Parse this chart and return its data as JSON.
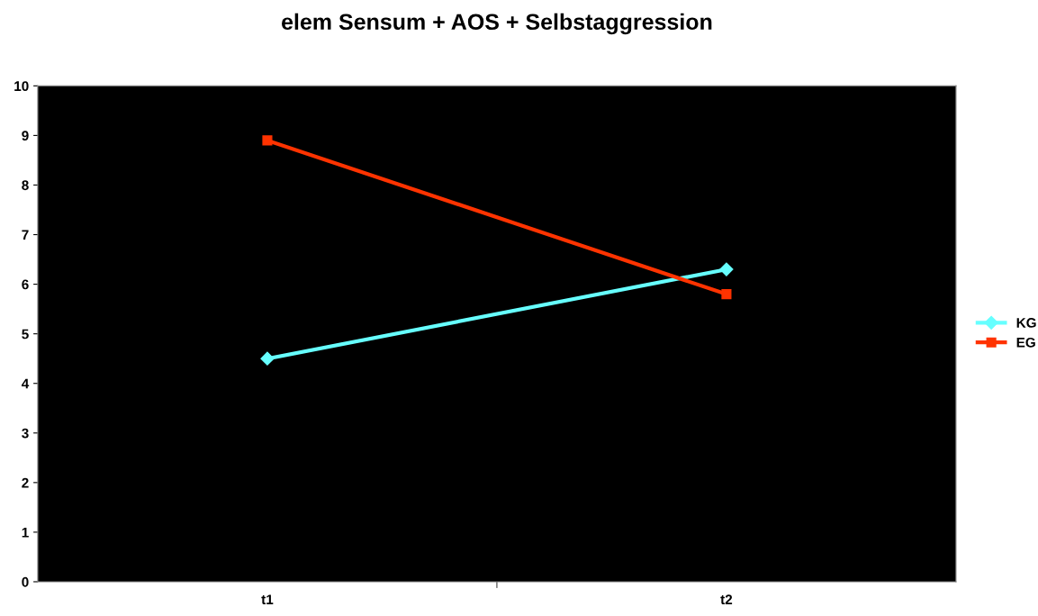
{
  "chart_data": {
    "type": "line",
    "title": "elem Sensum + AOS + Selbstaggression",
    "categories": [
      "t1",
      "t2"
    ],
    "series": [
      {
        "name": "KG",
        "color": "#66ffff",
        "values": [
          4.5,
          6.3
        ],
        "marker": "diamond"
      },
      {
        "name": "EG",
        "color": "#ff3300",
        "values": [
          8.9,
          5.8
        ],
        "marker": "square"
      }
    ],
    "ylim": [
      0,
      10
    ],
    "yticks": [
      0,
      1,
      2,
      3,
      4,
      5,
      6,
      7,
      8,
      9,
      10
    ],
    "grid": false,
    "legend": "right",
    "line_style": "solid"
  }
}
